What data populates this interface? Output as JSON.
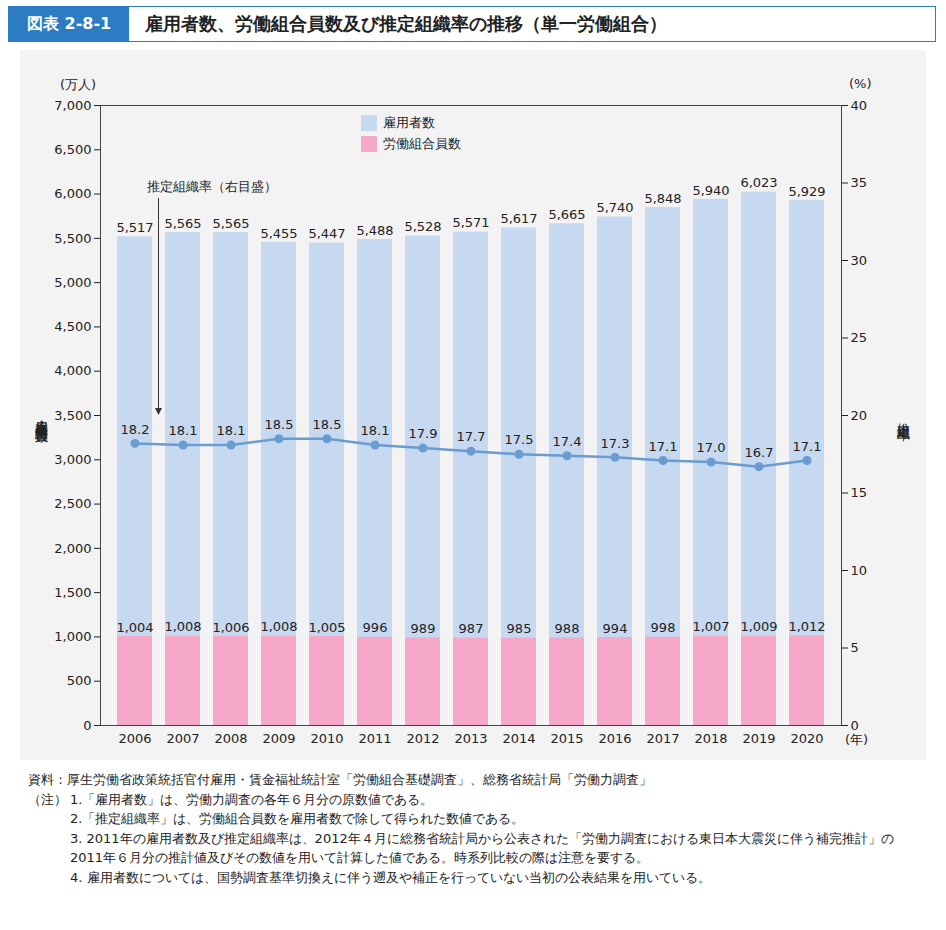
{
  "chart_data": {
    "type": "bar",
    "figure_label": "図表 2-8-1",
    "title": "雇用者数、労働組合員数及び推定組織率の推移（単一労働組合）",
    "categories": [
      "2006",
      "2007",
      "2008",
      "2009",
      "2010",
      "2011",
      "2012",
      "2013",
      "2014",
      "2015",
      "2016",
      "2017",
      "2018",
      "2019",
      "2020"
    ],
    "x_unit": "(年)",
    "y_label": "雇用者数・労働組合員数",
    "y_unit": "(万人)",
    "y2_label": "推定組織率",
    "y2_unit": "(%)",
    "ylim": [
      0,
      7000
    ],
    "yticks": [
      0,
      500,
      {
        "value": 1000,
        "label": "1,000"
      },
      {
        "value": 1500,
        "label": "1,500"
      },
      {
        "value": 2000,
        "label": "2,000"
      },
      {
        "value": 2500,
        "label": "2,500"
      },
      {
        "value": 3000,
        "label": "3,000"
      },
      {
        "value": 3500,
        "label": "3,500"
      },
      {
        "value": 4000,
        "label": "4,000"
      },
      {
        "value": 4500,
        "label": "4,500"
      },
      {
        "value": 5000,
        "label": "5,000"
      },
      {
        "value": 5500,
        "label": "5,500"
      },
      {
        "value": 6000,
        "label": "6,000"
      },
      {
        "value": 6500,
        "label": "6,500"
      },
      {
        "value": 7000,
        "label": "7,000"
      }
    ],
    "y2lim": [
      0,
      40
    ],
    "y2ticks": [
      0,
      5,
      10,
      15,
      20,
      25,
      30,
      35,
      40
    ],
    "grid": false,
    "stacked": false,
    "data_labels": true,
    "legend": "top",
    "series": [
      {
        "name": "雇用者数",
        "type": "bar",
        "color": "#c6d9f0",
        "values": [
          5517,
          5565,
          5565,
          5455,
          5447,
          5488,
          5528,
          5571,
          5617,
          5665,
          5740,
          5848,
          5940,
          6023,
          5929
        ],
        "value_labels": [
          "5,517",
          "5,565",
          "5,565",
          "5,455",
          "5,447",
          "5,488",
          "5,528",
          "5,571",
          "5,617",
          "5,665",
          "5,740",
          "5,848",
          "5,940",
          "6,023",
          "5,929"
        ]
      },
      {
        "name": "労働組合員数",
        "type": "bar",
        "color": "#f5a8c8",
        "values": [
          1004,
          1008,
          1006,
          1008,
          1005,
          996,
          989,
          987,
          985,
          988,
          994,
          998,
          1007,
          1009,
          1012
        ],
        "value_labels": [
          "1,004",
          "1,008",
          "1,006",
          "1,008",
          "1,005",
          "996",
          "989",
          "987",
          "985",
          "988",
          "994",
          "998",
          "1,007",
          "1,009",
          "1,012"
        ]
      },
      {
        "name": "推定組織率",
        "type": "line",
        "axis": "y2",
        "color": "#6a9bd1",
        "marker": "circle",
        "line_style": "solid",
        "values": [
          18.2,
          18.1,
          18.1,
          18.5,
          18.5,
          18.1,
          17.9,
          17.7,
          17.5,
          17.4,
          17.3,
          17.1,
          17.0,
          16.7,
          17.1
        ],
        "value_labels": [
          "18.2",
          "18.1",
          "18.1",
          "18.5",
          "18.5",
          "18.1",
          "17.9",
          "17.7",
          "17.5",
          "17.4",
          "17.3",
          "17.1",
          "17.0",
          "16.7",
          "17.1"
        ]
      }
    ],
    "annotations": [
      {
        "text": "推定組織率（右目盛）"
      }
    ],
    "caption": "資料：厚生労働省政策統括官付雇用・賃金福祉統計室「労働組合基礎調査」、総務省統計局「労働力調査」",
    "notes_label": "（注）",
    "notes": [
      "1.「雇用者数」は、労働力調査の各年６月分の原数値である。",
      "2.「推定組織率」は、労働組合員数を雇用者数で除して得られた数値である。",
      "3. 2011年の雇用者数及び推定組織率は、2012年４月に総務省統計局から公表された「労働力調査における東日本大震災に伴う補完推計」の2011年６月分の推計値及びその数値を用いて計算した値である。時系列比較の際は注意を要する。",
      "4. 雇用者数については、国勢調査基準切換えに伴う遡及や補正を行っていない当初の公表結果を用いている。"
    ]
  }
}
